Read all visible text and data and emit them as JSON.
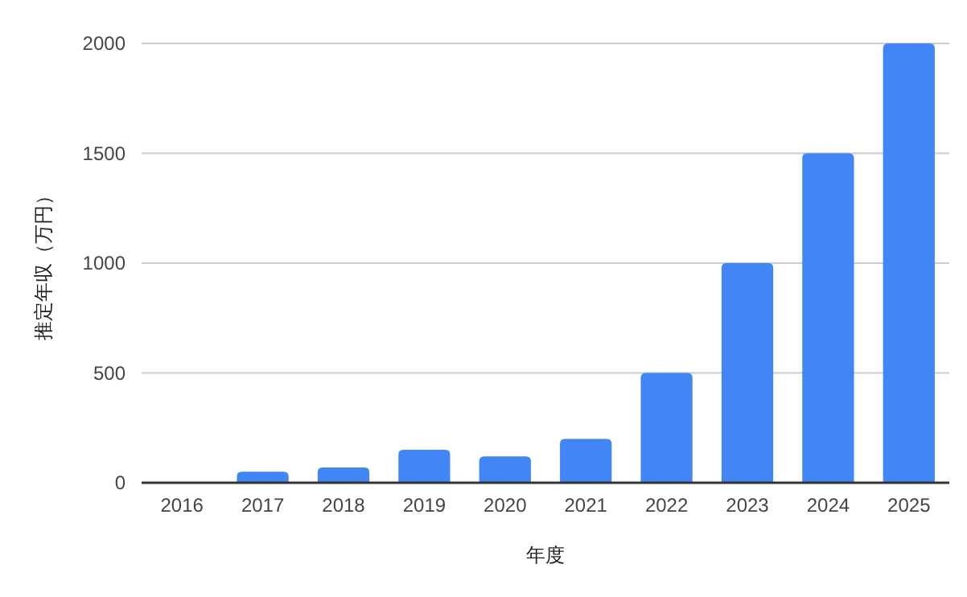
{
  "chart_data": {
    "type": "bar",
    "xlabel": "年度",
    "ylabel": "推定年収（万円）",
    "categories": [
      "2016",
      "2017",
      "2018",
      "2019",
      "2020",
      "2021",
      "2022",
      "2023",
      "2024",
      "2025"
    ],
    "values": [
      0,
      50,
      70,
      150,
      120,
      200,
      500,
      1000,
      1500,
      2000
    ],
    "color": "#4285f4",
    "ylim": [
      0,
      2000
    ],
    "yticks": [
      0,
      500,
      1000,
      1500,
      2000
    ],
    "grid": "y"
  }
}
